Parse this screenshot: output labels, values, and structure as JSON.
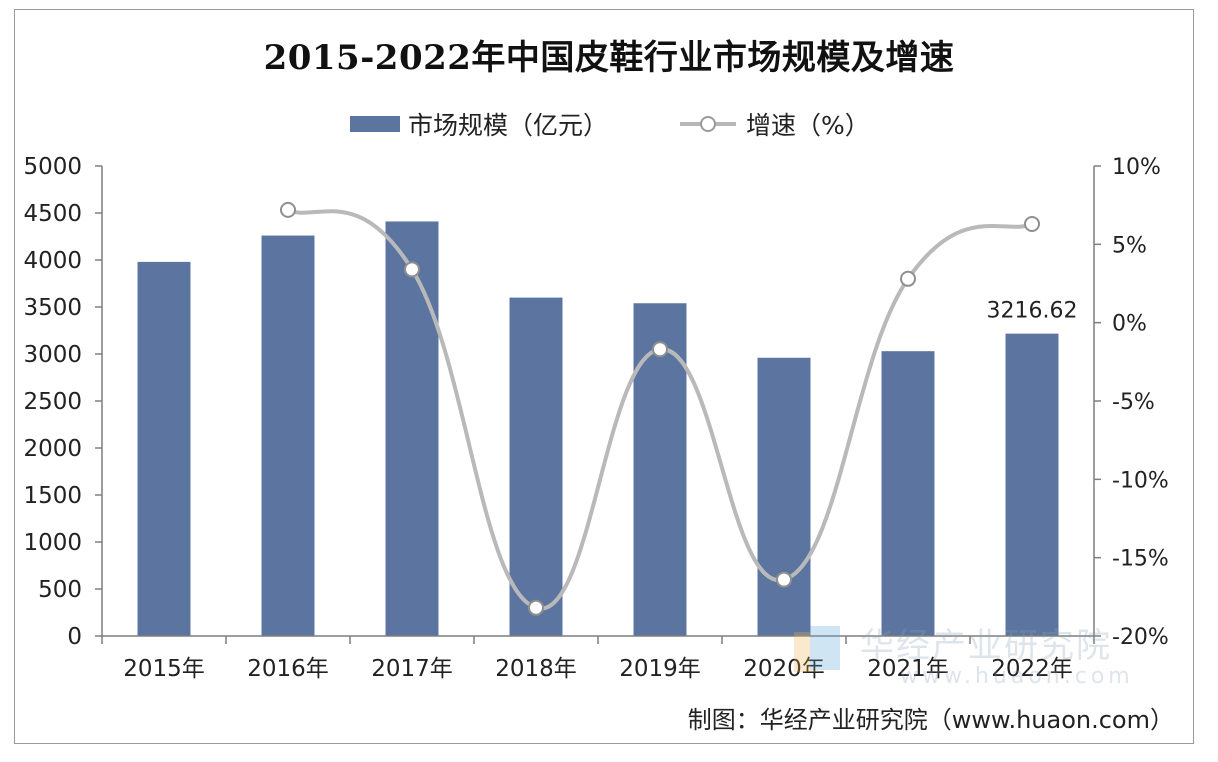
{
  "chart_data": {
    "type": "bar",
    "title": "2015-2022年中国皮鞋行业市场规模及增速",
    "categories": [
      "2015年",
      "2016年",
      "2017年",
      "2018年",
      "2019年",
      "2020年",
      "2021年",
      "2022年"
    ],
    "series": [
      {
        "name": "市场规模（亿元）",
        "type": "bar",
        "axis": "left",
        "values": [
          3980,
          4260,
          4410,
          3600,
          3540,
          2960,
          3030,
          3216.62
        ]
      },
      {
        "name": "增速（%）",
        "type": "line",
        "axis": "right",
        "values": [
          null,
          7.2,
          3.4,
          -18.2,
          -1.7,
          -16.4,
          2.8,
          6.3
        ]
      }
    ],
    "left_axis": {
      "ylim": [
        0,
        5000
      ],
      "ticks": [
        0,
        500,
        1000,
        1500,
        2000,
        2500,
        3000,
        3500,
        4000,
        4500,
        5000
      ],
      "tick_labels": [
        "0",
        "500",
        "1000",
        "1500",
        "2000",
        "2500",
        "3000",
        "3500",
        "4000",
        "4500",
        "5000"
      ]
    },
    "right_axis": {
      "ylim": [
        -20,
        10
      ],
      "ticks": [
        -20,
        -15,
        -10,
        -5,
        0,
        5,
        10
      ],
      "tick_labels": [
        "-20%",
        "-15%",
        "-10%",
        "-5%",
        "0%",
        "5%",
        "10%"
      ]
    },
    "data_labels": [
      {
        "category": "2022年",
        "series": "市场规模（亿元）",
        "text": "3216.62"
      }
    ],
    "legend": "top-center",
    "grid": false,
    "colors": {
      "bar": "#5b75a0",
      "line": "#b9b9b9",
      "marker_stroke": "#8f8f8f"
    }
  },
  "source_text": "制图：华经产业研究院（www.huaon.com）",
  "watermark": {
    "text": "华经产业研究院",
    "url": "www.huaon.com"
  }
}
